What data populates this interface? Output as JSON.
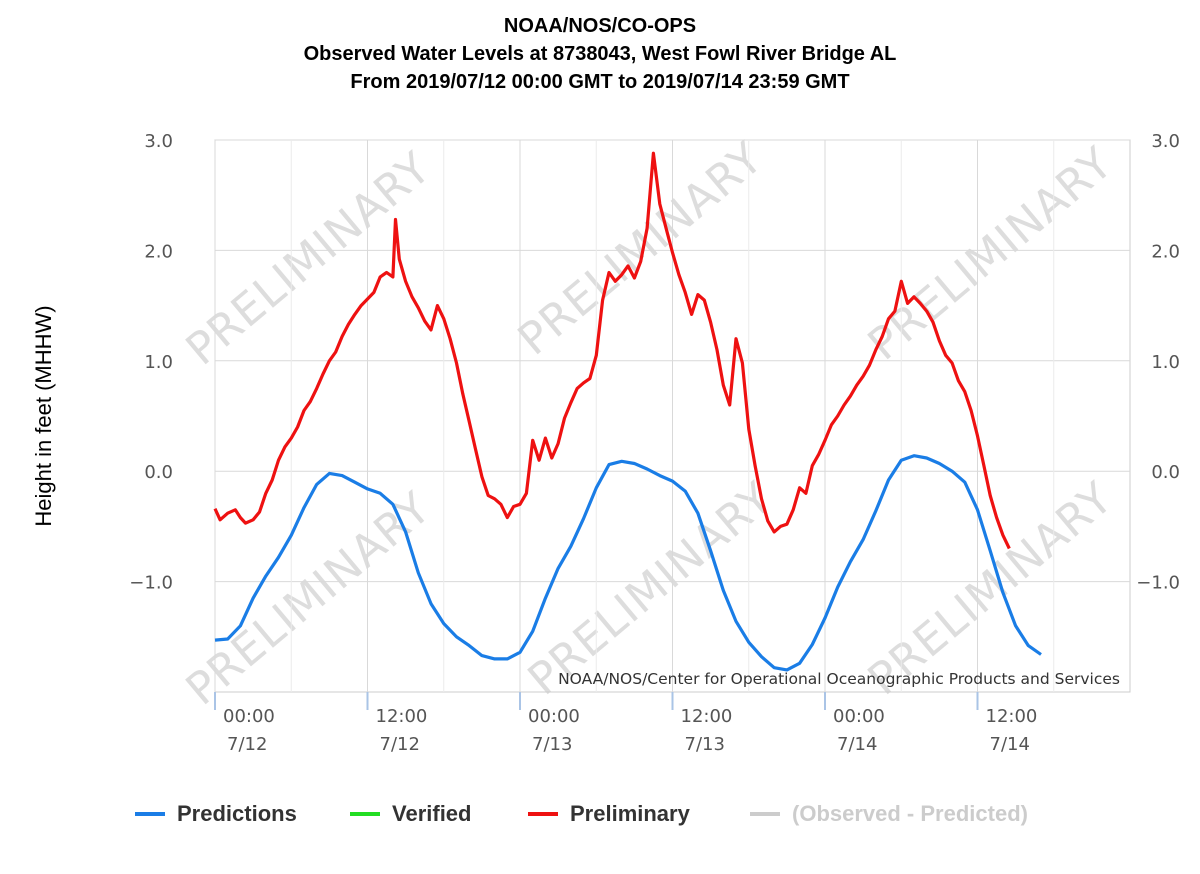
{
  "chart_data": {
    "type": "line",
    "title": [
      "NOAA/NOS/CO-OPS",
      "Observed Water Levels at 8738043, West Fowl River Bridge AL",
      "From 2019/07/12 00:00 GMT to 2019/07/14 23:59 GMT"
    ],
    "ylabel": "Height in feet (MHHW)",
    "xlabel": "",
    "ylim": [
      -2.0,
      3.0
    ],
    "xlim_hours": [
      0,
      72
    ],
    "x_unit": "hours since 2019/07/12 00:00 GMT",
    "y_ticks": [
      "3.0",
      "2.0",
      "1.0",
      "0.0",
      "−1.0"
    ],
    "y_tick_values": [
      3.0,
      2.0,
      1.0,
      0.0,
      -1.0
    ],
    "x_ticks": [
      {
        "hour": 0,
        "time": "00:00",
        "date": "7/12"
      },
      {
        "hour": 12,
        "time": "12:00",
        "date": "7/12"
      },
      {
        "hour": 24,
        "time": "00:00",
        "date": "7/13"
      },
      {
        "hour": 36,
        "time": "12:00",
        "date": "7/13"
      },
      {
        "hour": 48,
        "time": "00:00",
        "date": "7/14"
      },
      {
        "hour": 60,
        "time": "12:00",
        "date": "7/14"
      }
    ],
    "grid": true,
    "legend_position": "bottom",
    "watermark": "PRELIMINARY",
    "credit": "NOAA/NOS/Center for Operational Oceanographic Products and Services",
    "series": [
      {
        "name": "Predictions",
        "color": "#1a7de6",
        "points": [
          [
            0,
            -1.53
          ],
          [
            1,
            -1.52
          ],
          [
            2,
            -1.4
          ],
          [
            3,
            -1.15
          ],
          [
            4,
            -0.95
          ],
          [
            5,
            -0.78
          ],
          [
            6,
            -0.58
          ],
          [
            7,
            -0.33
          ],
          [
            8,
            -0.12
          ],
          [
            9,
            -0.02
          ],
          [
            10,
            -0.04
          ],
          [
            11,
            -0.1
          ],
          [
            12,
            -0.16
          ],
          [
            13,
            -0.2
          ],
          [
            14,
            -0.3
          ],
          [
            15,
            -0.55
          ],
          [
            16,
            -0.92
          ],
          [
            17,
            -1.2
          ],
          [
            18,
            -1.38
          ],
          [
            19,
            -1.5
          ],
          [
            20,
            -1.58
          ],
          [
            21,
            -1.67
          ],
          [
            22,
            -1.7
          ],
          [
            23,
            -1.7
          ],
          [
            24,
            -1.64
          ],
          [
            25,
            -1.45
          ],
          [
            26,
            -1.15
          ],
          [
            27,
            -0.88
          ],
          [
            28,
            -0.68
          ],
          [
            29,
            -0.43
          ],
          [
            30,
            -0.15
          ],
          [
            31,
            0.06
          ],
          [
            32,
            0.09
          ],
          [
            33,
            0.07
          ],
          [
            34,
            0.02
          ],
          [
            35,
            -0.04
          ],
          [
            36,
            -0.09
          ],
          [
            37,
            -0.18
          ],
          [
            38,
            -0.38
          ],
          [
            39,
            -0.72
          ],
          [
            40,
            -1.08
          ],
          [
            41,
            -1.36
          ],
          [
            42,
            -1.55
          ],
          [
            43,
            -1.68
          ],
          [
            44,
            -1.78
          ],
          [
            45,
            -1.8
          ],
          [
            46,
            -1.74
          ],
          [
            47,
            -1.57
          ],
          [
            48,
            -1.33
          ],
          [
            49,
            -1.05
          ],
          [
            50,
            -0.82
          ],
          [
            51,
            -0.62
          ],
          [
            52,
            -0.36
          ],
          [
            53,
            -0.08
          ],
          [
            54,
            0.1
          ],
          [
            55,
            0.14
          ],
          [
            56,
            0.12
          ],
          [
            57,
            0.07
          ],
          [
            58,
            0.0
          ],
          [
            59,
            -0.1
          ],
          [
            60,
            -0.35
          ],
          [
            61,
            -0.72
          ],
          [
            62,
            -1.1
          ],
          [
            63,
            -1.4
          ],
          [
            64,
            -1.58
          ],
          [
            65,
            -1.66
          ]
        ]
      },
      {
        "name": "Verified",
        "color": "#22dd22",
        "points": []
      },
      {
        "name": "Preliminary",
        "color": "#ee1111",
        "points": [
          [
            0,
            -0.34
          ],
          [
            0.4,
            -0.44
          ],
          [
            1,
            -0.38
          ],
          [
            1.6,
            -0.35
          ],
          [
            2,
            -0.42
          ],
          [
            2.4,
            -0.47
          ],
          [
            3,
            -0.44
          ],
          [
            3.5,
            -0.37
          ],
          [
            4,
            -0.2
          ],
          [
            4.5,
            -0.08
          ],
          [
            5,
            0.1
          ],
          [
            5.5,
            0.22
          ],
          [
            6,
            0.3
          ],
          [
            6.5,
            0.4
          ],
          [
            7,
            0.55
          ],
          [
            7.5,
            0.63
          ],
          [
            8,
            0.75
          ],
          [
            8.5,
            0.88
          ],
          [
            9,
            1.0
          ],
          [
            9.5,
            1.08
          ],
          [
            10,
            1.22
          ],
          [
            10.5,
            1.33
          ],
          [
            11,
            1.42
          ],
          [
            11.5,
            1.5
          ],
          [
            12,
            1.56
          ],
          [
            12.5,
            1.62
          ],
          [
            13,
            1.76
          ],
          [
            13.5,
            1.8
          ],
          [
            14,
            1.76
          ],
          [
            14.2,
            2.28
          ],
          [
            14.5,
            1.92
          ],
          [
            15,
            1.72
          ],
          [
            15.5,
            1.58
          ],
          [
            16,
            1.48
          ],
          [
            16.5,
            1.36
          ],
          [
            17,
            1.28
          ],
          [
            17.5,
            1.5
          ],
          [
            18,
            1.38
          ],
          [
            18.5,
            1.2
          ],
          [
            19,
            0.98
          ],
          [
            19.5,
            0.7
          ],
          [
            20,
            0.45
          ],
          [
            20.5,
            0.2
          ],
          [
            21,
            -0.05
          ],
          [
            21.5,
            -0.22
          ],
          [
            22,
            -0.25
          ],
          [
            22.5,
            -0.3
          ],
          [
            23,
            -0.42
          ],
          [
            23.5,
            -0.32
          ],
          [
            24,
            -0.3
          ],
          [
            24.5,
            -0.2
          ],
          [
            25,
            0.28
          ],
          [
            25.5,
            0.1
          ],
          [
            26,
            0.3
          ],
          [
            26.5,
            0.12
          ],
          [
            27,
            0.25
          ],
          [
            27.5,
            0.48
          ],
          [
            28,
            0.62
          ],
          [
            28.5,
            0.75
          ],
          [
            29,
            0.8
          ],
          [
            29.5,
            0.84
          ],
          [
            30,
            1.05
          ],
          [
            30.5,
            1.55
          ],
          [
            31,
            1.8
          ],
          [
            31.5,
            1.72
          ],
          [
            32,
            1.78
          ],
          [
            32.5,
            1.86
          ],
          [
            33,
            1.75
          ],
          [
            33.5,
            1.9
          ],
          [
            34,
            2.2
          ],
          [
            34.5,
            2.88
          ],
          [
            35,
            2.42
          ],
          [
            35.5,
            2.2
          ],
          [
            36,
            1.98
          ],
          [
            36.5,
            1.78
          ],
          [
            37,
            1.62
          ],
          [
            37.5,
            1.42
          ],
          [
            38,
            1.6
          ],
          [
            38.5,
            1.55
          ],
          [
            39,
            1.35
          ],
          [
            39.5,
            1.1
          ],
          [
            40,
            0.78
          ],
          [
            40.5,
            0.6
          ],
          [
            41,
            1.2
          ],
          [
            41.5,
            0.98
          ],
          [
            42,
            0.38
          ],
          [
            42.5,
            0.05
          ],
          [
            43,
            -0.25
          ],
          [
            43.5,
            -0.45
          ],
          [
            44,
            -0.55
          ],
          [
            44.5,
            -0.5
          ],
          [
            45,
            -0.48
          ],
          [
            45.5,
            -0.35
          ],
          [
            46,
            -0.15
          ],
          [
            46.5,
            -0.2
          ],
          [
            47,
            0.05
          ],
          [
            47.5,
            0.15
          ],
          [
            48,
            0.28
          ],
          [
            48.5,
            0.42
          ],
          [
            49,
            0.5
          ],
          [
            49.5,
            0.6
          ],
          [
            50,
            0.68
          ],
          [
            50.5,
            0.78
          ],
          [
            51,
            0.86
          ],
          [
            51.5,
            0.96
          ],
          [
            52,
            1.1
          ],
          [
            52.5,
            1.22
          ],
          [
            53,
            1.38
          ],
          [
            53.5,
            1.45
          ],
          [
            54,
            1.72
          ],
          [
            54.5,
            1.52
          ],
          [
            55,
            1.58
          ],
          [
            55.5,
            1.52
          ],
          [
            56,
            1.45
          ],
          [
            56.5,
            1.35
          ],
          [
            57,
            1.18
          ],
          [
            57.5,
            1.05
          ],
          [
            58,
            0.98
          ],
          [
            58.5,
            0.82
          ],
          [
            59,
            0.72
          ],
          [
            59.5,
            0.55
          ],
          [
            60,
            0.32
          ],
          [
            60.5,
            0.05
          ],
          [
            61,
            -0.22
          ],
          [
            61.5,
            -0.42
          ],
          [
            62,
            -0.58
          ],
          [
            62.5,
            -0.7
          ]
        ]
      },
      {
        "name": "(Observed - Predicted)",
        "color": "#cccccc",
        "points": []
      }
    ]
  }
}
